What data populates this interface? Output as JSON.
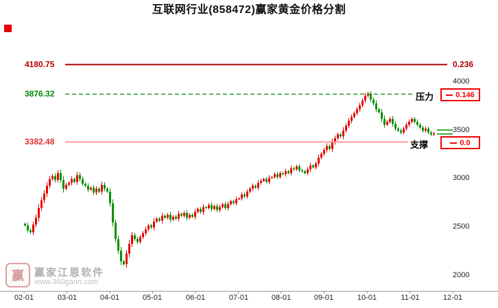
{
  "title": "互联网行业(858472)赢家黄金价格分割",
  "levels": {
    "fib_top": {
      "value": "4180.75",
      "ratio": "0.236"
    },
    "resistance": {
      "value": "3876.32",
      "label": "压力",
      "ratio": "0.146"
    },
    "support": {
      "value": "3382.48",
      "label": "支撑",
      "ratio": "0.0"
    }
  },
  "watermark": {
    "logo_text": "赢",
    "brand": "赢家江恩软件",
    "url": "www.360gann.com"
  },
  "chart_data": {
    "type": "candlestick",
    "title": "互联网行业(858472)赢家黄金价格分割",
    "x_labels": [
      "02-01",
      "03-01",
      "04-01",
      "05-01",
      "06-01",
      "07-01",
      "08-01",
      "09-01",
      "10-01",
      "11-01",
      "12-01"
    ],
    "y_labels": [
      "4000",
      "3500",
      "3000",
      "2500",
      "2000"
    ],
    "y_range": [
      2000,
      4000
    ],
    "up_color": "#e60000",
    "down_color": "#009100",
    "levels": [
      {
        "name": "fib_0.236",
        "price": 4180.75,
        "ratio": 0.236,
        "color": "#b00000",
        "style": "solid"
      },
      {
        "name": "resistance_0.146",
        "price": 3876.32,
        "ratio": 0.146,
        "color": "#008800",
        "style": "dashed"
      },
      {
        "name": "support_0.0",
        "price": 3382.48,
        "ratio": 0.0,
        "color": "#ff9999",
        "style": "solid"
      }
    ],
    "recent_marks": [
      3505,
      3465
    ],
    "closes": [
      2520,
      2470,
      2450,
      2530,
      2600,
      2700,
      2780,
      2850,
      2930,
      3000,
      3030,
      2990,
      3060,
      2990,
      2900,
      2940,
      2960,
      3000,
      2970,
      3040,
      3000,
      2950,
      2930,
      2890,
      2910,
      2860,
      2900,
      2870,
      2940,
      2900,
      2870,
      2750,
      2550,
      2380,
      2260,
      2150,
      2120,
      2230,
      2330,
      2420,
      2380,
      2350,
      2400,
      2440,
      2480,
      2520,
      2500,
      2560,
      2590,
      2570,
      2620,
      2600,
      2630,
      2580,
      2610,
      2590,
      2640,
      2620,
      2650,
      2600,
      2630,
      2610,
      2660,
      2690,
      2660,
      2710,
      2700,
      2730,
      2690,
      2720,
      2680,
      2710,
      2740,
      2700,
      2740,
      2770,
      2750,
      2790,
      2800,
      2840,
      2820,
      2870,
      2900,
      2930,
      2910,
      2960,
      2980,
      3000,
      2970,
      3010,
      3020,
      3050,
      3020,
      3060,
      3050,
      3080,
      3060,
      3110,
      3100,
      3130,
      3090,
      3080,
      3060,
      3100,
      3140,
      3120,
      3160,
      3220,
      3260,
      3300,
      3340,
      3310,
      3380,
      3420,
      3460,
      3440,
      3500,
      3550,
      3600,
      3640,
      3680,
      3720,
      3760,
      3810,
      3860,
      3880,
      3820,
      3780,
      3720,
      3690,
      3620,
      3560,
      3590,
      3620,
      3570,
      3520,
      3500,
      3480,
      3520,
      3560,
      3590,
      3620,
      3590,
      3560,
      3530,
      3500,
      3520,
      3480,
      3460,
      3470
    ]
  }
}
